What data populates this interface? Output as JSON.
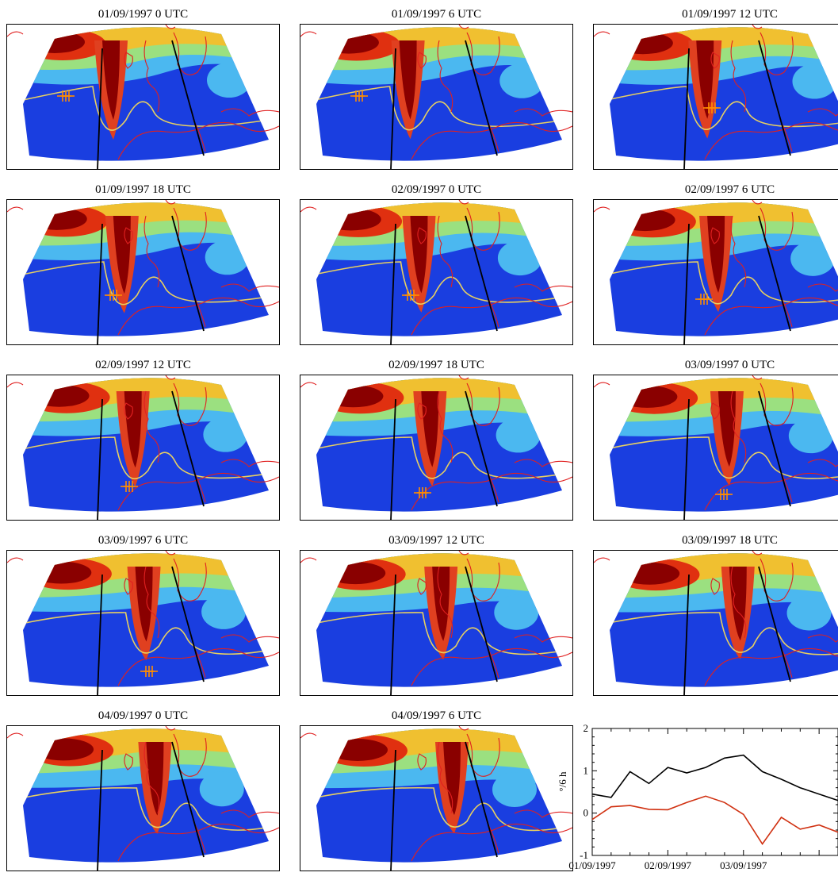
{
  "maps": [
    {
      "title": "01/09/1997 0 UTC",
      "step": 0
    },
    {
      "title": "01/09/1997 6 UTC",
      "step": 1
    },
    {
      "title": "01/09/1997 12 UTC",
      "step": 2
    },
    {
      "title": "01/09/1997 18 UTC",
      "step": 3
    },
    {
      "title": "02/09/1997 0 UTC",
      "step": 4
    },
    {
      "title": "02/09/1997 6 UTC",
      "step": 5
    },
    {
      "title": "02/09/1997 12 UTC",
      "step": 6
    },
    {
      "title": "02/09/1997 18 UTC",
      "step": 7
    },
    {
      "title": "03/09/1997 0 UTC",
      "step": 8
    },
    {
      "title": "03/09/1997 6 UTC",
      "step": 9
    },
    {
      "title": "03/09/1997 12 UTC",
      "step": 10
    },
    {
      "title": "03/09/1997 18 UTC",
      "step": 11
    },
    {
      "title": "04/09/1997 0 UTC",
      "step": 12
    },
    {
      "title": "04/09/1997 6 UTC",
      "step": 13
    }
  ],
  "colors": {
    "field_low": "#1a3ee0",
    "field_mid": "#4bb8f0",
    "field_high": "#f0c030",
    "field_max": "#8a0000",
    "contour": "#e8d060",
    "coastline": "#e02020",
    "cross_section": "#000000",
    "marker": "#ff8c00",
    "series_black": "#000000",
    "series_red": "#d03010"
  },
  "chart_data": {
    "type": "line",
    "ylabel": "°/6 h",
    "ylim": [
      -1,
      2
    ],
    "yticks": [
      "-1",
      "0",
      "1",
      "2"
    ],
    "xticks": [
      "01/09/1997",
      "02/09/1997",
      "03/09/1997"
    ],
    "x": [
      "01/09/1997 0 UTC",
      "01/09/1997 6 UTC",
      "01/09/1997 12 UTC",
      "01/09/1997 18 UTC",
      "02/09/1997 0 UTC",
      "02/09/1997 6 UTC",
      "02/09/1997 12 UTC",
      "02/09/1997 18 UTC",
      "03/09/1997 0 UTC",
      "03/09/1997 6 UTC",
      "03/09/1997 12 UTC",
      "03/09/1997 18 UTC",
      "04/09/1997 0 UTC",
      "04/09/1997 6 UTC"
    ],
    "series": [
      {
        "color": "#000000",
        "values": [
          0.45,
          0.37,
          0.98,
          0.7,
          1.08,
          0.95,
          1.08,
          1.3,
          1.37,
          0.98,
          0.8,
          0.6,
          0.45,
          0.3
        ]
      },
      {
        "color": "#d03010",
        "values": [
          -0.15,
          0.15,
          0.18,
          0.09,
          0.08,
          0.25,
          0.4,
          0.25,
          -0.03,
          -0.73,
          -0.1,
          -0.38,
          -0.28,
          -0.45
        ]
      }
    ]
  }
}
